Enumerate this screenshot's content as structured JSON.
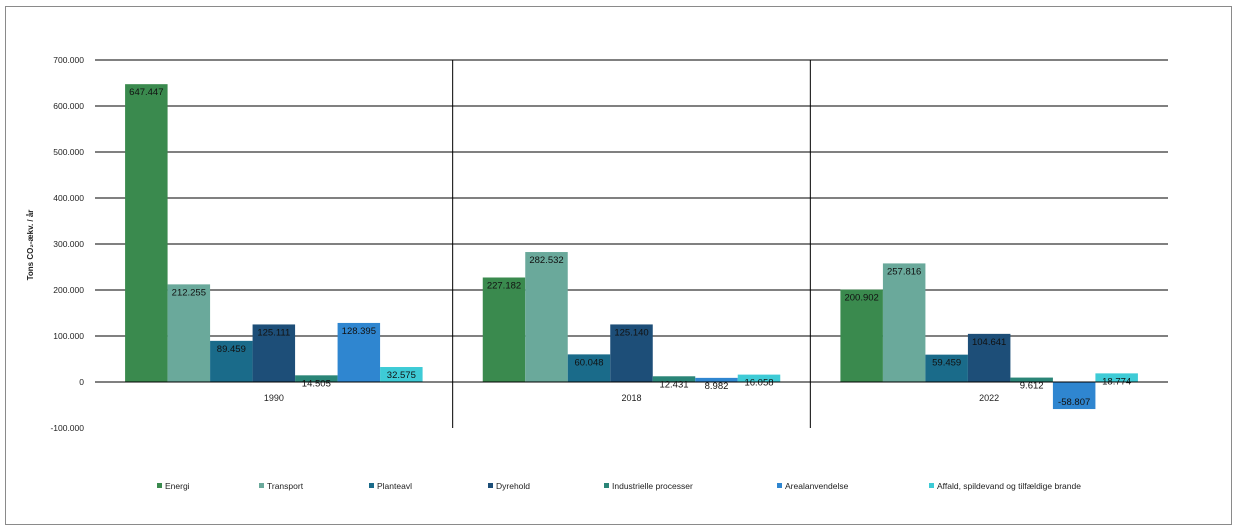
{
  "chart_data": {
    "type": "bar",
    "categories": [
      "1990",
      "2018",
      "2022"
    ],
    "ylabel": "Tons CO₂-ækv. / år",
    "ylim": [
      -100000,
      700000
    ],
    "yticks": [
      "-100.000",
      "0",
      "100.000",
      "200.000",
      "300.000",
      "400.000",
      "500.000",
      "600.000",
      "700.000"
    ],
    "grid": true,
    "legend_position": "bottom",
    "series": [
      {
        "name": "Energi",
        "color": "#3a8a4e",
        "values": [
          647447,
          227182,
          200902
        ],
        "labels": [
          "647.447",
          "227.182",
          "200.902"
        ]
      },
      {
        "name": "Transport",
        "color": "#6aa99b",
        "values": [
          212255,
          282532,
          257816
        ],
        "labels": [
          "212.255",
          "282.532",
          "257.816"
        ]
      },
      {
        "name": "Planteavl",
        "color": "#1a6b8a",
        "values": [
          89459,
          60048,
          59459
        ],
        "labels": [
          "89.459",
          "60.048",
          "59.459"
        ]
      },
      {
        "name": "Dyrehold",
        "color": "#1d4e78",
        "values": [
          125111,
          125140,
          104641
        ],
        "labels": [
          "125.111",
          "125.140",
          "104.641"
        ]
      },
      {
        "name": "Industrielle processer",
        "color": "#2a8577",
        "values": [
          14505,
          12431,
          9612
        ],
        "labels": [
          "14.505",
          "12.431",
          "9.612"
        ]
      },
      {
        "name": "Arealanvendelse",
        "color": "#2f86d0",
        "values": [
          128395,
          8982,
          -58807
        ],
        "labels": [
          "128.395",
          "8.982",
          "-58.807"
        ]
      },
      {
        "name": "Affald, spildevand og tilfældige brande",
        "color": "#3ecbd6",
        "values": [
          32575,
          16058,
          18774
        ],
        "labels": [
          "32.575",
          "16.058",
          "18.774"
        ]
      }
    ]
  }
}
